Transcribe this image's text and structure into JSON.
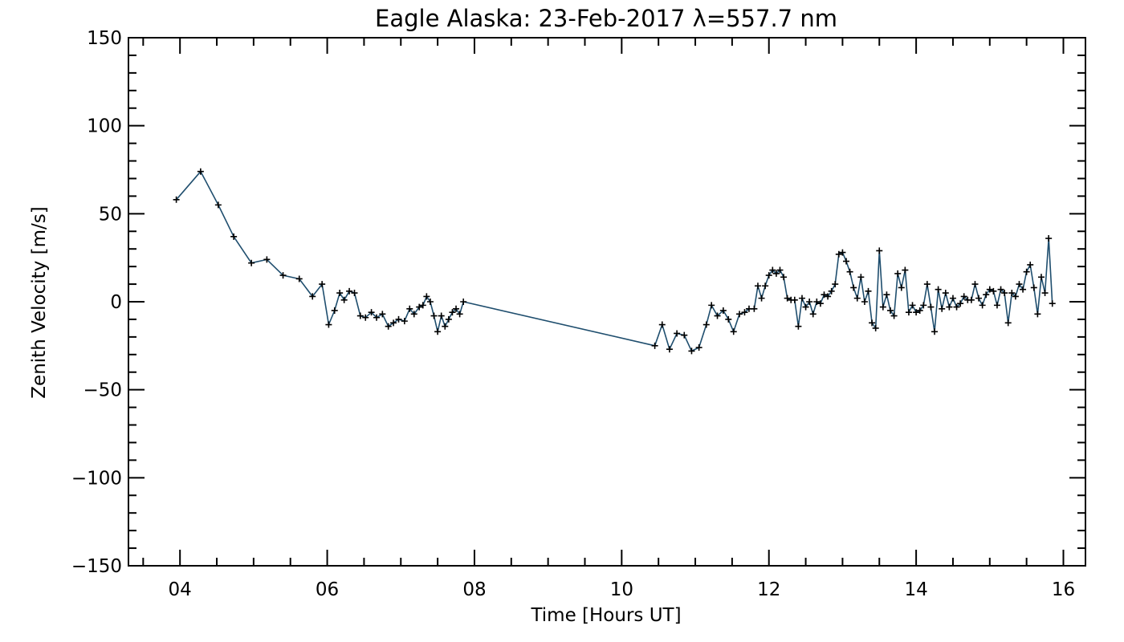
{
  "chart_data": {
    "type": "line",
    "title": "Eagle Alaska: 23-Feb-2017 λ=557.7 nm",
    "xlabel": "Time [Hours UT]",
    "ylabel": "Zenith Velocity [m/s]",
    "xlim": [
      3.3,
      16.3
    ],
    "ylim": [
      -150,
      150
    ],
    "x_ticks": [
      4,
      6,
      8,
      10,
      12,
      14,
      16
    ],
    "x_tick_labels": [
      "04",
      "06",
      "08",
      "10",
      "12",
      "14",
      "16"
    ],
    "y_ticks": [
      -150,
      -100,
      -50,
      0,
      50,
      100,
      150
    ],
    "y_tick_labels": [
      "−150",
      "−100",
      "−50",
      "0",
      "50",
      "100",
      "150"
    ],
    "grid": false,
    "line_color": "#1f4e6e",
    "marker": "+",
    "series": [
      {
        "points": [
          [
            3.95,
            58
          ],
          [
            4.28,
            74
          ],
          [
            4.52,
            55
          ],
          [
            4.73,
            37
          ],
          [
            4.97,
            22
          ],
          [
            5.18,
            24
          ],
          [
            5.4,
            15
          ],
          [
            5.62,
            13
          ],
          [
            5.8,
            3
          ],
          [
            5.93,
            10
          ],
          [
            6.02,
            -13
          ],
          [
            6.1,
            -5
          ],
          [
            6.17,
            5
          ],
          [
            6.23,
            1
          ],
          [
            6.3,
            6
          ],
          [
            6.37,
            5
          ],
          [
            6.45,
            -8
          ],
          [
            6.52,
            -9
          ],
          [
            6.6,
            -6
          ],
          [
            6.67,
            -9
          ],
          [
            6.75,
            -7
          ],
          [
            6.83,
            -14
          ],
          [
            6.9,
            -12
          ],
          [
            6.97,
            -10
          ],
          [
            7.05,
            -11
          ],
          [
            7.12,
            -4
          ],
          [
            7.18,
            -7
          ],
          [
            7.25,
            -3
          ],
          [
            7.3,
            -2
          ],
          [
            7.35,
            3
          ],
          [
            7.4,
            0
          ],
          [
            7.45,
            -8
          ],
          [
            7.5,
            -17
          ],
          [
            7.55,
            -8
          ],
          [
            7.6,
            -14
          ],
          [
            7.65,
            -10
          ],
          [
            7.7,
            -6
          ],
          [
            7.75,
            -4
          ],
          [
            7.8,
            -7
          ],
          [
            7.85,
            0
          ],
          [
            10.45,
            -25
          ],
          [
            10.55,
            -13
          ],
          [
            10.65,
            -27
          ],
          [
            10.75,
            -18
          ],
          [
            10.85,
            -19
          ],
          [
            10.95,
            -28
          ],
          [
            11.05,
            -26
          ],
          [
            11.15,
            -13
          ],
          [
            11.22,
            -2
          ],
          [
            11.3,
            -8
          ],
          [
            11.38,
            -5
          ],
          [
            11.45,
            -10
          ],
          [
            11.52,
            -17
          ],
          [
            11.6,
            -7
          ],
          [
            11.67,
            -6
          ],
          [
            11.73,
            -4
          ],
          [
            11.8,
            -4
          ],
          [
            11.85,
            9
          ],
          [
            11.9,
            2
          ],
          [
            11.95,
            9
          ],
          [
            12.0,
            15
          ],
          [
            12.05,
            18
          ],
          [
            12.1,
            16
          ],
          [
            12.15,
            18
          ],
          [
            12.2,
            14
          ],
          [
            12.25,
            2
          ],
          [
            12.3,
            1
          ],
          [
            12.35,
            1
          ],
          [
            12.4,
            -14
          ],
          [
            12.45,
            2
          ],
          [
            12.5,
            -3
          ],
          [
            12.55,
            0
          ],
          [
            12.6,
            -7
          ],
          [
            12.65,
            0
          ],
          [
            12.7,
            -1
          ],
          [
            12.75,
            4
          ],
          [
            12.8,
            3
          ],
          [
            12.85,
            6
          ],
          [
            12.9,
            10
          ],
          [
            12.95,
            27
          ],
          [
            13.0,
            28
          ],
          [
            13.05,
            23
          ],
          [
            13.1,
            17
          ],
          [
            13.15,
            8
          ],
          [
            13.2,
            2
          ],
          [
            13.25,
            14
          ],
          [
            13.3,
            0
          ],
          [
            13.35,
            6
          ],
          [
            13.4,
            -12
          ],
          [
            13.45,
            -15
          ],
          [
            13.5,
            29
          ],
          [
            13.55,
            -3
          ],
          [
            13.6,
            4
          ],
          [
            13.65,
            -5
          ],
          [
            13.7,
            -8
          ],
          [
            13.75,
            16
          ],
          [
            13.8,
            8
          ],
          [
            13.85,
            18
          ],
          [
            13.9,
            -6
          ],
          [
            13.95,
            -2
          ],
          [
            14.0,
            -6
          ],
          [
            14.05,
            -5
          ],
          [
            14.1,
            -2
          ],
          [
            14.15,
            10
          ],
          [
            14.2,
            -3
          ],
          [
            14.25,
            -17
          ],
          [
            14.3,
            7
          ],
          [
            14.35,
            -4
          ],
          [
            14.4,
            5
          ],
          [
            14.45,
            -3
          ],
          [
            14.5,
            2
          ],
          [
            14.55,
            -3
          ],
          [
            14.6,
            -1
          ],
          [
            14.65,
            3
          ],
          [
            14.7,
            1
          ],
          [
            14.75,
            1
          ],
          [
            14.8,
            10
          ],
          [
            14.85,
            2
          ],
          [
            14.9,
            -2
          ],
          [
            14.95,
            4
          ],
          [
            15.0,
            7
          ],
          [
            15.05,
            6
          ],
          [
            15.1,
            -2
          ],
          [
            15.15,
            7
          ],
          [
            15.2,
            5
          ],
          [
            15.25,
            -12
          ],
          [
            15.3,
            5
          ],
          [
            15.35,
            3
          ],
          [
            15.4,
            10
          ],
          [
            15.45,
            7
          ],
          [
            15.5,
            17
          ],
          [
            15.55,
            21
          ],
          [
            15.6,
            8
          ],
          [
            15.65,
            -7
          ],
          [
            15.7,
            14
          ],
          [
            15.75,
            5
          ],
          [
            15.8,
            36
          ],
          [
            15.85,
            -1
          ]
        ]
      }
    ]
  }
}
